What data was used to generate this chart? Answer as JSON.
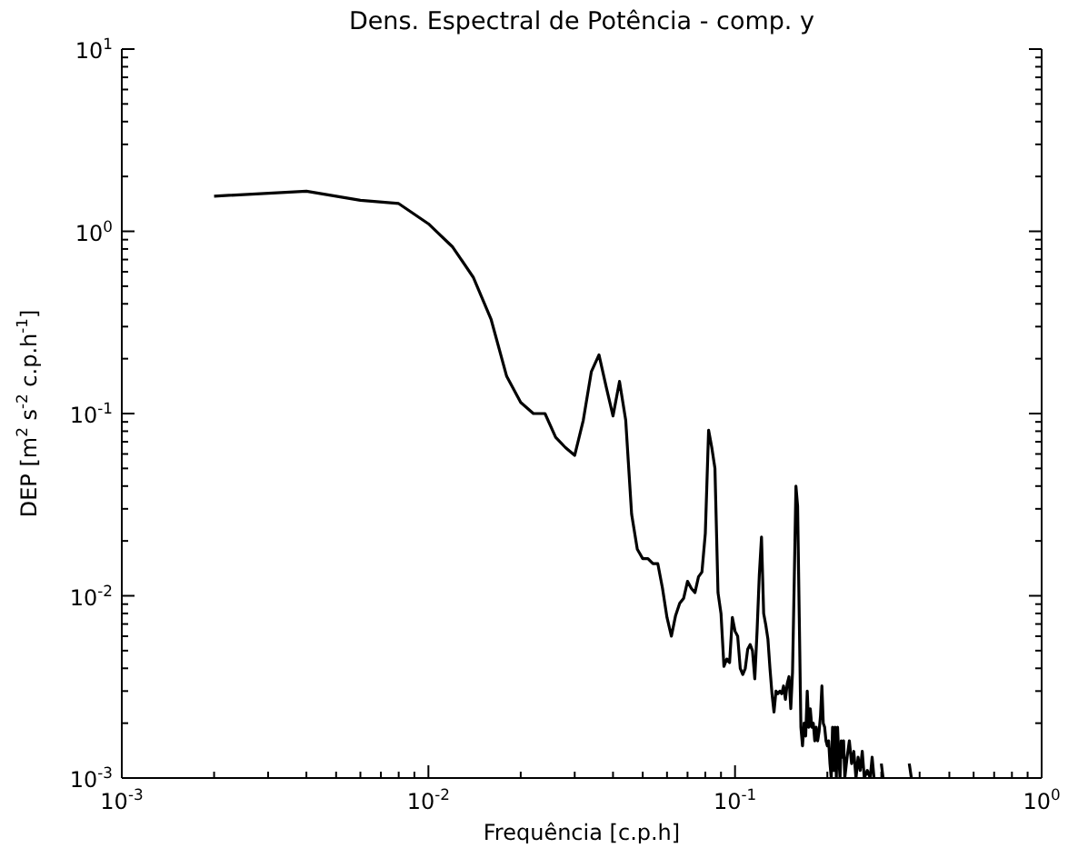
{
  "chart_data": {
    "type": "line",
    "title": "Dens. Espectral de Potência - comp. y",
    "xlabel": "Frequência [c.p.h]",
    "ylabel": "DEP [m$^{2}$ s$^{-2}$ c.p.h$^{-1}$]",
    "log": "xy",
    "marker": "none",
    "line_style": "solid",
    "xlim": [
      0.001,
      1
    ],
    "ylim": [
      0.001,
      10
    ],
    "xticks": [
      {
        "value": 0.001,
        "label": "10$^{-3}$"
      },
      {
        "value": 0.002,
        "label": null
      },
      {
        "value": 0.003,
        "label": null
      },
      {
        "value": 0.004,
        "label": null
      },
      {
        "value": 0.005,
        "label": null
      },
      {
        "value": 0.006,
        "label": null
      },
      {
        "value": 0.007,
        "label": null
      },
      {
        "value": 0.008,
        "label": null
      },
      {
        "value": 0.009,
        "label": null
      },
      {
        "value": 0.01,
        "label": "10$^{-2}$"
      },
      {
        "value": 0.02,
        "label": null
      },
      {
        "value": 0.03,
        "label": null
      },
      {
        "value": 0.04,
        "label": null
      },
      {
        "value": 0.05,
        "label": null
      },
      {
        "value": 0.06,
        "label": null
      },
      {
        "value": 0.07,
        "label": null
      },
      {
        "value": 0.08,
        "label": null
      },
      {
        "value": 0.09,
        "label": null
      },
      {
        "value": 0.1,
        "label": "10$^{-1}$"
      },
      {
        "value": 0.2,
        "label": null
      },
      {
        "value": 0.3,
        "label": null
      },
      {
        "value": 0.4,
        "label": null
      },
      {
        "value": 0.5,
        "label": null
      },
      {
        "value": 0.6,
        "label": null
      },
      {
        "value": 0.7,
        "label": null
      },
      {
        "value": 0.8,
        "label": null
      },
      {
        "value": 0.9,
        "label": null
      },
      {
        "value": 1,
        "label": "10$^{0}$"
      }
    ],
    "yticks": [
      {
        "value": 0.001,
        "label": "10$^{-3}$"
      },
      {
        "value": 0.002,
        "label": null
      },
      {
        "value": 0.003,
        "label": null
      },
      {
        "value": 0.004,
        "label": null
      },
      {
        "value": 0.005,
        "label": null
      },
      {
        "value": 0.006,
        "label": null
      },
      {
        "value": 0.007,
        "label": null
      },
      {
        "value": 0.008,
        "label": null
      },
      {
        "value": 0.009,
        "label": null
      },
      {
        "value": 0.01,
        "label": "10$^{-2}$"
      },
      {
        "value": 0.02,
        "label": null
      },
      {
        "value": 0.03,
        "label": null
      },
      {
        "value": 0.04,
        "label": null
      },
      {
        "value": 0.05,
        "label": null
      },
      {
        "value": 0.06,
        "label": null
      },
      {
        "value": 0.07,
        "label": null
      },
      {
        "value": 0.08,
        "label": null
      },
      {
        "value": 0.09,
        "label": null
      },
      {
        "value": 0.1,
        "label": "10$^{-1}$"
      },
      {
        "value": 0.2,
        "label": null
      },
      {
        "value": 0.3,
        "label": null
      },
      {
        "value": 0.4,
        "label": null
      },
      {
        "value": 0.5,
        "label": null
      },
      {
        "value": 0.6,
        "label": null
      },
      {
        "value": 0.7,
        "label": null
      },
      {
        "value": 0.8,
        "label": null
      },
      {
        "value": 0.9,
        "label": null
      },
      {
        "value": 1,
        "label": "10$^{0}$"
      },
      {
        "value": 2,
        "label": null
      },
      {
        "value": 3,
        "label": null
      },
      {
        "value": 4,
        "label": null
      },
      {
        "value": 5,
        "label": null
      },
      {
        "value": 6,
        "label": null
      },
      {
        "value": 7,
        "label": null
      },
      {
        "value": 8,
        "label": null
      },
      {
        "value": 9,
        "label": null
      },
      {
        "value": 10,
        "label": "10$^{1}$"
      }
    ],
    "x": [
      0.002,
      0.004,
      0.006,
      0.008,
      0.01,
      0.012,
      0.014,
      0.016,
      0.018,
      0.02,
      0.022,
      0.024,
      0.026,
      0.028,
      0.03,
      0.032,
      0.034,
      0.036,
      0.038,
      0.04,
      0.042,
      0.044,
      0.046,
      0.048,
      0.05,
      0.052,
      0.054,
      0.056,
      0.058,
      0.06,
      0.062,
      0.064,
      0.066,
      0.068,
      0.07,
      0.072,
      0.074,
      0.076,
      0.078,
      0.08,
      0.082,
      0.084,
      0.086,
      0.088,
      0.09,
      0.092,
      0.094,
      0.096,
      0.098,
      0.1,
      0.102,
      0.104,
      0.106,
      0.108,
      0.11,
      0.112,
      0.114,
      0.116,
      0.118,
      0.12,
      0.122,
      0.124,
      0.126,
      0.128,
      0.13,
      0.132,
      0.134,
      0.136,
      0.138,
      0.14,
      0.142,
      0.144,
      0.146,
      0.148,
      0.15,
      0.152,
      0.154,
      0.156,
      0.158,
      0.16,
      0.162,
      0.164,
      0.166,
      0.168,
      0.17,
      0.172,
      0.174,
      0.176,
      0.178,
      0.18,
      0.182,
      0.184,
      0.186,
      0.188,
      0.19,
      0.192,
      0.194,
      0.196,
      0.198,
      0.2,
      0.202,
      0.204,
      0.206,
      0.208,
      0.21,
      0.212,
      0.214,
      0.216,
      0.218,
      0.22,
      0.222,
      0.224,
      0.226,
      0.228,
      0.232,
      0.236,
      0.24,
      0.244,
      0.248,
      0.252,
      0.256,
      0.26,
      0.264,
      0.27,
      0.276,
      0.28,
      0.284,
      0.29,
      0.3,
      0.304,
      0.33,
      0.37,
      0.376
    ],
    "series": [
      {
        "color": "#000000",
        "values": [
          1.56,
          1.66,
          1.48,
          1.42,
          1.1,
          0.82,
          0.56,
          0.33,
          0.16,
          0.115,
          0.1,
          0.1,
          0.074,
          0.065,
          0.059,
          0.092,
          0.17,
          0.21,
          0.14,
          0.097,
          0.15,
          0.092,
          0.028,
          0.018,
          0.016,
          0.016,
          0.015,
          0.015,
          0.011,
          0.0076,
          0.006,
          0.0078,
          0.0091,
          0.0097,
          0.012,
          0.011,
          0.0104,
          0.0127,
          0.0135,
          0.022,
          0.081,
          0.065,
          0.05,
          0.0104,
          0.008,
          0.0041,
          0.0045,
          0.0043,
          0.0076,
          0.0064,
          0.006,
          0.004,
          0.0037,
          0.004,
          0.0051,
          0.0054,
          0.005,
          0.0035,
          0.0064,
          0.013,
          0.021,
          0.008,
          0.0069,
          0.0058,
          0.004,
          0.0029,
          0.0023,
          0.003,
          0.0029,
          0.003,
          0.0029,
          0.0032,
          0.0027,
          0.0033,
          0.0036,
          0.0024,
          0.0038,
          0.012,
          0.04,
          0.031,
          0.0076,
          0.0019,
          0.0015,
          0.002,
          0.0017,
          0.003,
          0.0019,
          0.0024,
          0.0019,
          0.002,
          0.0016,
          0.0019,
          0.0016,
          0.0018,
          0.0022,
          0.0032,
          0.002,
          0.0019,
          0.0016,
          0.0015,
          0.0016,
          0.0012,
          0.001,
          0.0019,
          0.0011,
          0.0019,
          0.001,
          0.0019,
          0.0013,
          0.001,
          0.0016,
          0.0013,
          0.0016,
          0.001,
          0.0013,
          0.0016,
          0.0012,
          0.0014,
          0.001,
          0.0013,
          0.0011,
          0.0014,
          0.001,
          0.0011,
          0.001,
          0.0013,
          0.001,
          null,
          0.0012,
          0.001,
          null,
          0.0012,
          0.001
        ]
      }
    ]
  }
}
